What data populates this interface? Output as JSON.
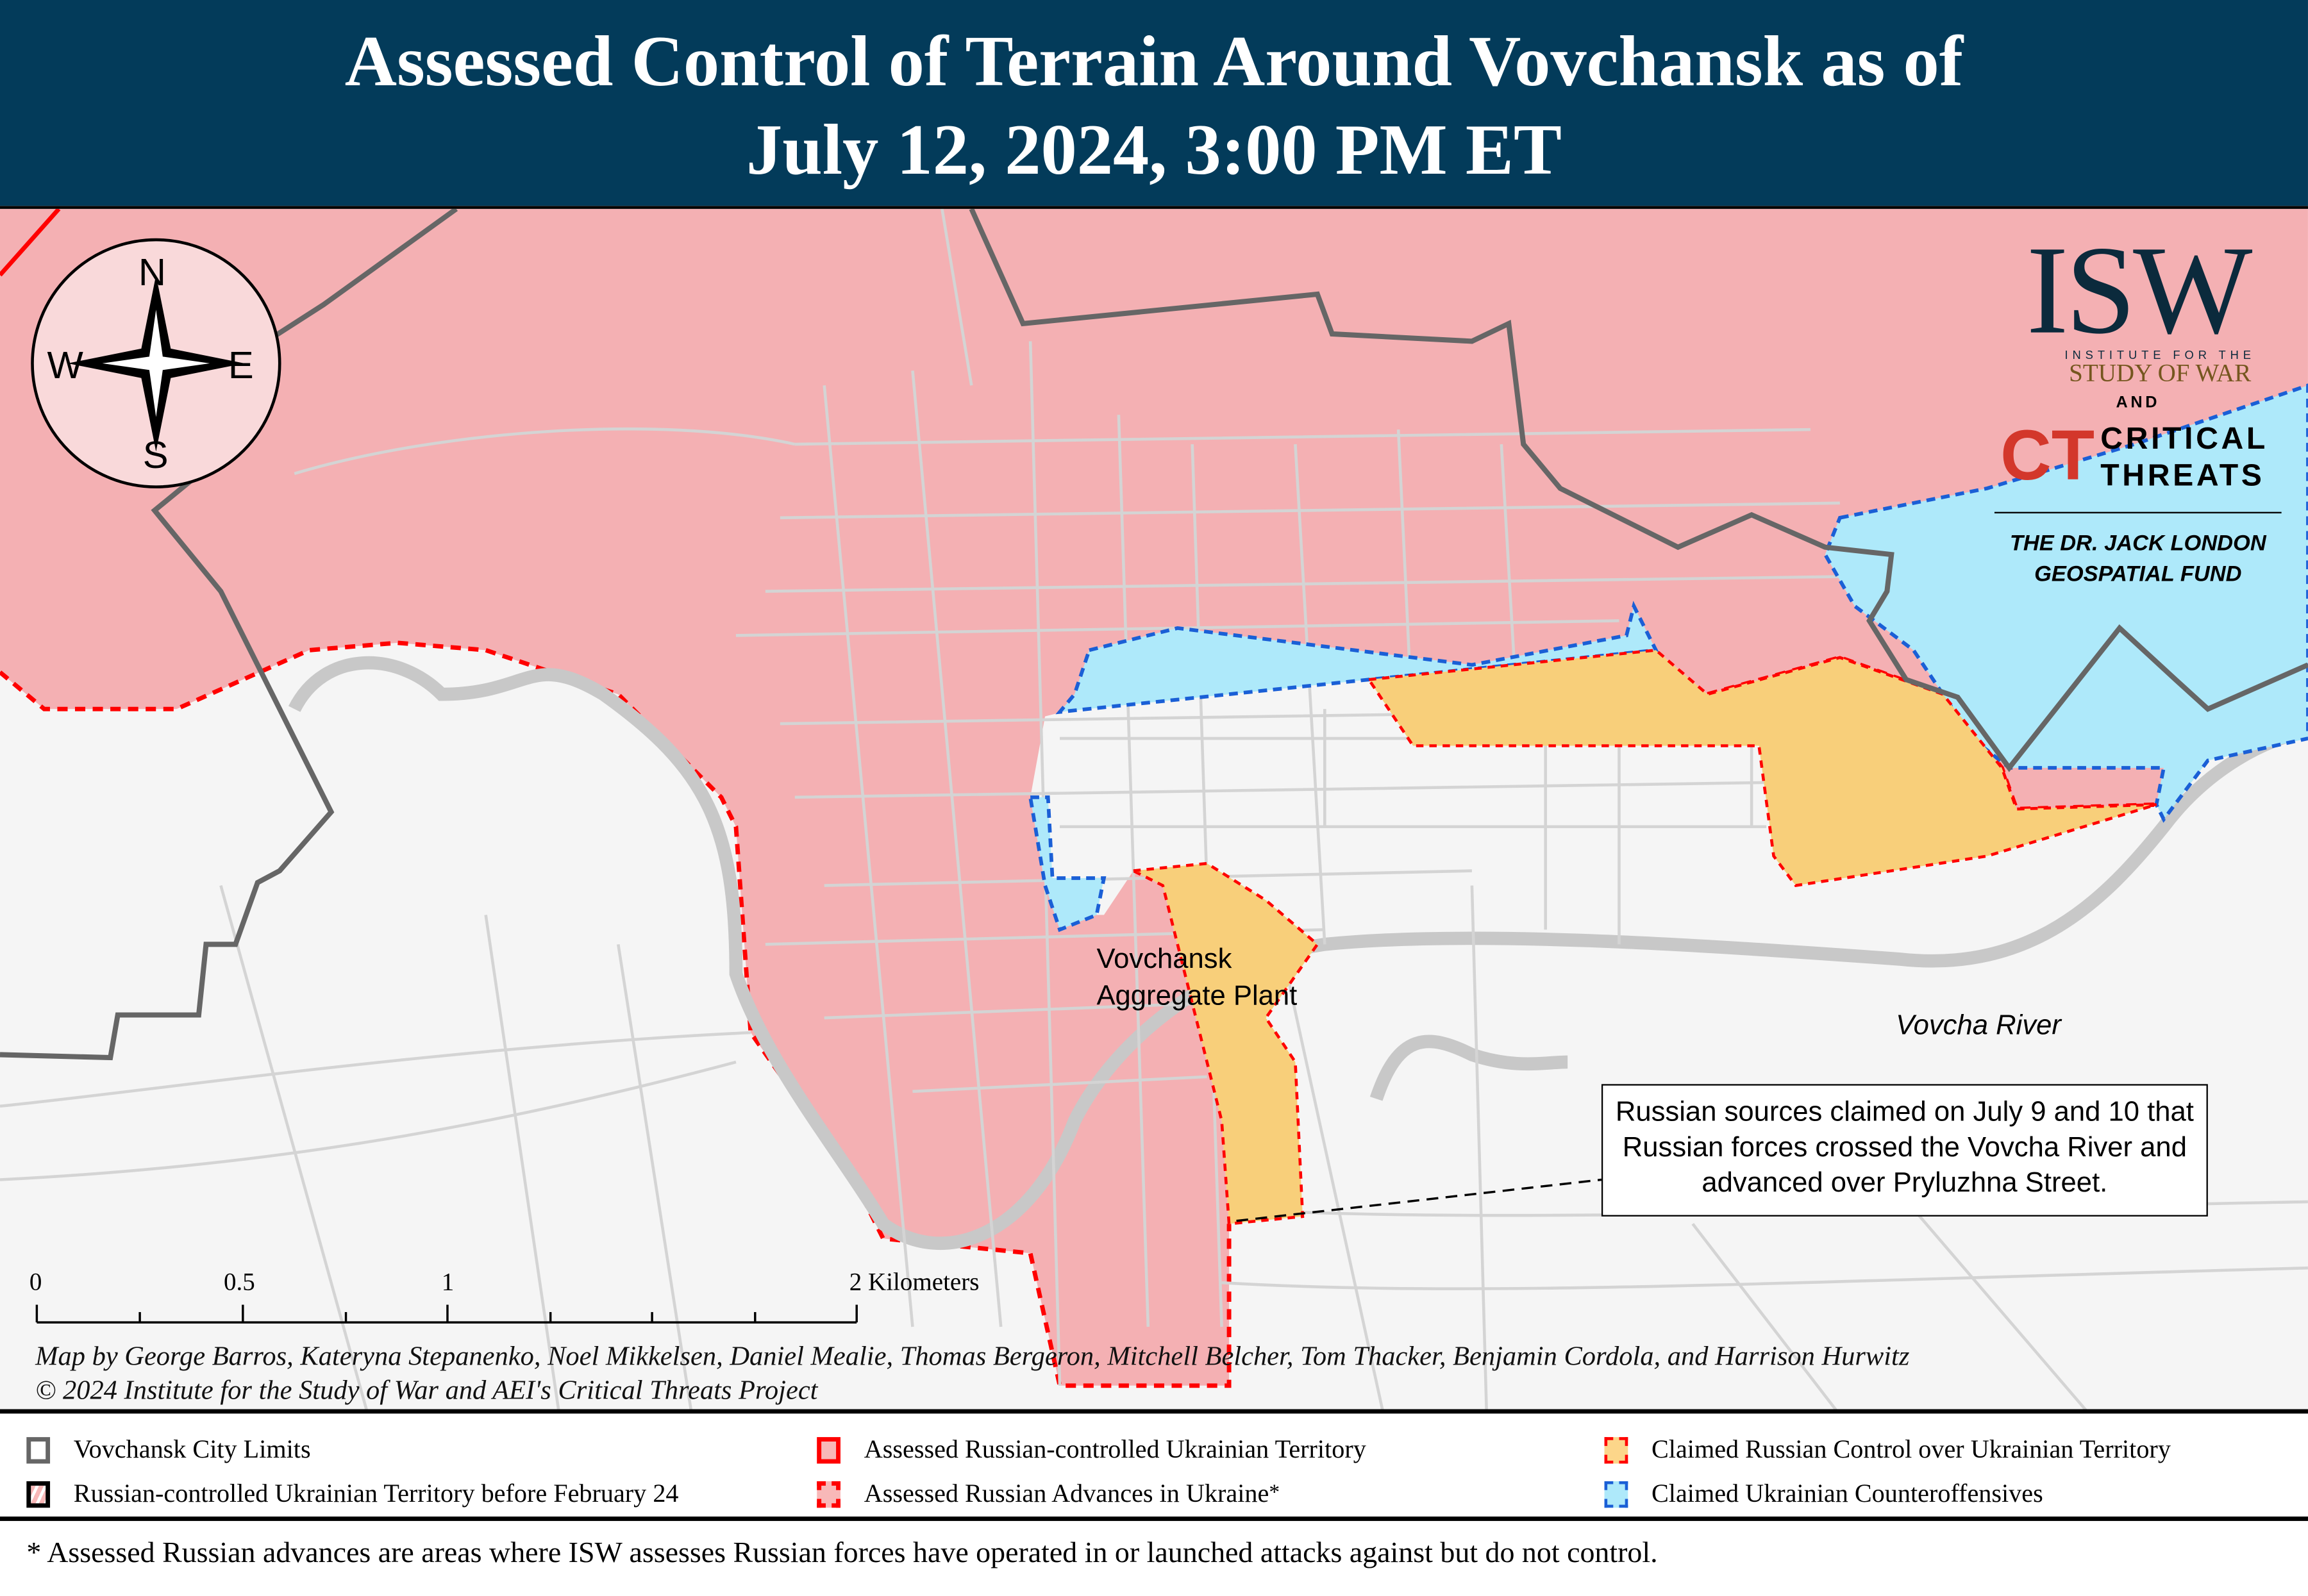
{
  "title": {
    "line1": "Assessed Control of Terrain Around Vovchansk as of",
    "line2": "July 12, 2024, 3:00 PM ET"
  },
  "compass": {
    "n": "N",
    "s": "S",
    "e": "E",
    "w": "W"
  },
  "logo": {
    "isw": "ISW",
    "isw_sub1": "INSTITUTE FOR THE",
    "isw_sub2": "STUDY OF WAR",
    "and": "AND",
    "ct1": "CRITICAL",
    "ct2": "THREATS",
    "fund1": "THE DR. JACK LONDON",
    "fund2": "GEOSPATIAL FUND"
  },
  "map_labels": {
    "plant1": "Vovchansk",
    "plant2": "Aggregate Plant",
    "river": "Vovcha River"
  },
  "annotation": "Russian sources claimed on July 9 and 10 that Russian forces crossed the Vovcha River and advanced over Pryluzhna Street.",
  "scale": {
    "t0": "0",
    "t1": "0.5",
    "t2": "1",
    "t3": "2 Kilometers"
  },
  "credits": {
    "line1": "Map by George Barros, Kateryna Stepanenko, Noel Mikkelsen, Daniel Mealie, Thomas Bergeron, Mitchell Belcher, Tom Thacker, Benjamin Cordola, and Harrison Hurwitz",
    "line2": "© 2024 Institute for the Study of War and AEI's Critical Threats Project"
  },
  "legend": [
    {
      "label": "Vovchansk City Limits"
    },
    {
      "label": "Russian-controlled Ukrainian Territory before February 24"
    },
    {
      "label": "Assessed Russian-controlled Ukrainian Territory"
    },
    {
      "label": "Assessed Russian Advances in Ukraine",
      "sup": "*"
    },
    {
      "label": "Claimed Russian Control over Ukrainian Territory"
    },
    {
      "label": "Claimed Ukrainian Counteroffensives"
    }
  ],
  "footnote": "* Assessed Russian advances are areas where ISW assesses Russian forces have operated in or launched attacks against but do not control.",
  "colors": {
    "title_bg": "#033b5a",
    "russian": "#f4b0b3",
    "claimed_russian": "#f8cf7a",
    "ukrainian_counter": "#aee9fa",
    "city_limits": "#666666",
    "red_line": "#ff0000",
    "blue_line": "#1a5fd6"
  }
}
